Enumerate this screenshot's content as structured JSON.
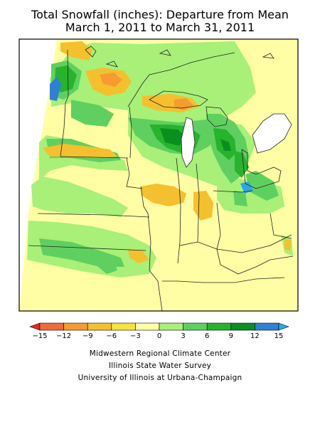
{
  "title": {
    "line1": "Total Snowfall (inches): Departure from Mean",
    "line2": "March 1, 2011 to March 31, 2011"
  },
  "legend": {
    "ticks": [
      "−15",
      "−12",
      "−9",
      "−6",
      "−3",
      "0",
      "3",
      "6",
      "9",
      "12",
      "15"
    ],
    "colors": [
      "#e8291c",
      "#f2693a",
      "#f59b31",
      "#f5c02d",
      "#f4e43c",
      "#fffea4",
      "#a8f078",
      "#5fd05f",
      "#28b32d",
      "#0a8f1f",
      "#2f7fd4",
      "#2aa8e6"
    ]
  },
  "credits": [
    "Midwestern Regional Climate Center",
    "Illinois State Water Survey",
    "University of Illinois at Urbana-Champaign"
  ]
}
